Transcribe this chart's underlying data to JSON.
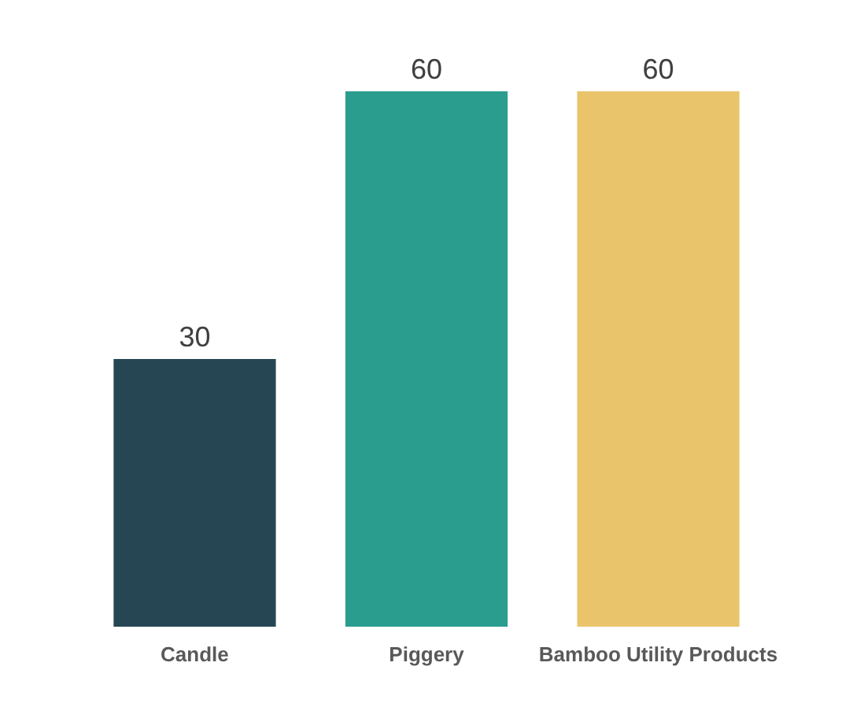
{
  "chart_data": {
    "type": "bar",
    "categories": [
      "Candle",
      "Piggery",
      "Bamboo Utility Products"
    ],
    "values": [
      30,
      60,
      60
    ],
    "colors": [
      "#264653",
      "#2a9d8f",
      "#e9c46a"
    ],
    "data_labels": true
  }
}
